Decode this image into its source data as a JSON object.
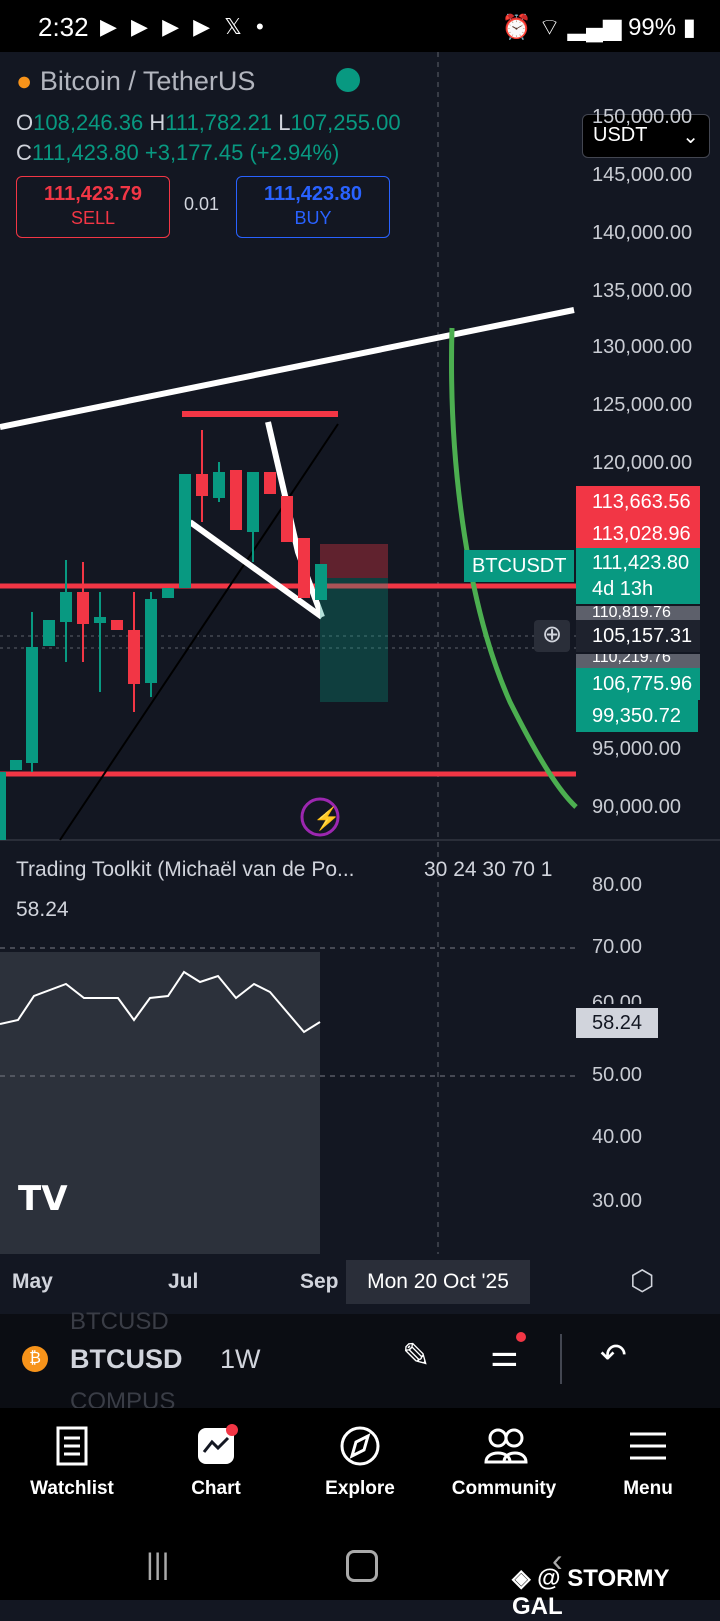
{
  "status_bar": {
    "time": "2:32",
    "battery": "99%"
  },
  "symbol": {
    "name": "Bitcoin / TetherUS",
    "currency": "USDT"
  },
  "ohlc": {
    "o_label": "O",
    "open": "108,246.36",
    "h_label": "H",
    "high": "111,782.21",
    "l_label": "L",
    "low": "107,255.00",
    "c_label": "C",
    "close": "111,423.80",
    "change": "+3,177.45 (+2.94%)"
  },
  "trade": {
    "sell_price": "111,423.79",
    "sell_label": "SELL",
    "spread": "0.01",
    "buy_price": "111,423.80",
    "buy_label": "BUY"
  },
  "price_axis": [
    "150,000.00",
    "145,000.00",
    "140,000.00",
    "135,000.00",
    "130,000.00",
    "125,000.00",
    "120,000.00",
    "95,000.00",
    "90,000.00"
  ],
  "price_tags": {
    "t1": "113,663.56",
    "t2": "113,028.96",
    "current": "111,423.80",
    "countdown": "4d 13h",
    "hidden1": "110,819.76",
    "crosshair": "105,157.31",
    "hidden2": "110,219.76",
    "t3": "106,775.96",
    "t4": "99,350.72",
    "symbol_tag": "BTCUSDT"
  },
  "indicator": {
    "title": "Trading Toolkit (Michaël van de Po...",
    "params": "30 24 30 70 1",
    "value": "58.24",
    "axis": [
      "80.00",
      "70.00",
      "60.00",
      "50.00",
      "40.00",
      "30.00"
    ],
    "tag": "58.24"
  },
  "time_axis": {
    "may": "May",
    "jul": "Jul",
    "sep": "Sep",
    "crosshair_date": "Mon 20 Oct '25"
  },
  "toolbar": {
    "ticker": "BTCUSD",
    "interval": "1W",
    "ghost_top": "BTCUSD",
    "ghost_bottom": "COMPUS"
  },
  "nav": [
    {
      "label": "Watchlist",
      "icon": "watchlist-icon"
    },
    {
      "label": "Chart",
      "icon": "chart-icon"
    },
    {
      "label": "Explore",
      "icon": "compass-icon"
    },
    {
      "label": "Community",
      "icon": "community-icon"
    },
    {
      "label": "Menu",
      "icon": "menu-icon"
    }
  ],
  "watermark": "@ STORMY GAL",
  "colors": {
    "bg": "#131722",
    "up": "#089981",
    "down": "#f23645",
    "accent": "#2962ff",
    "arc": "#4caf50"
  }
}
